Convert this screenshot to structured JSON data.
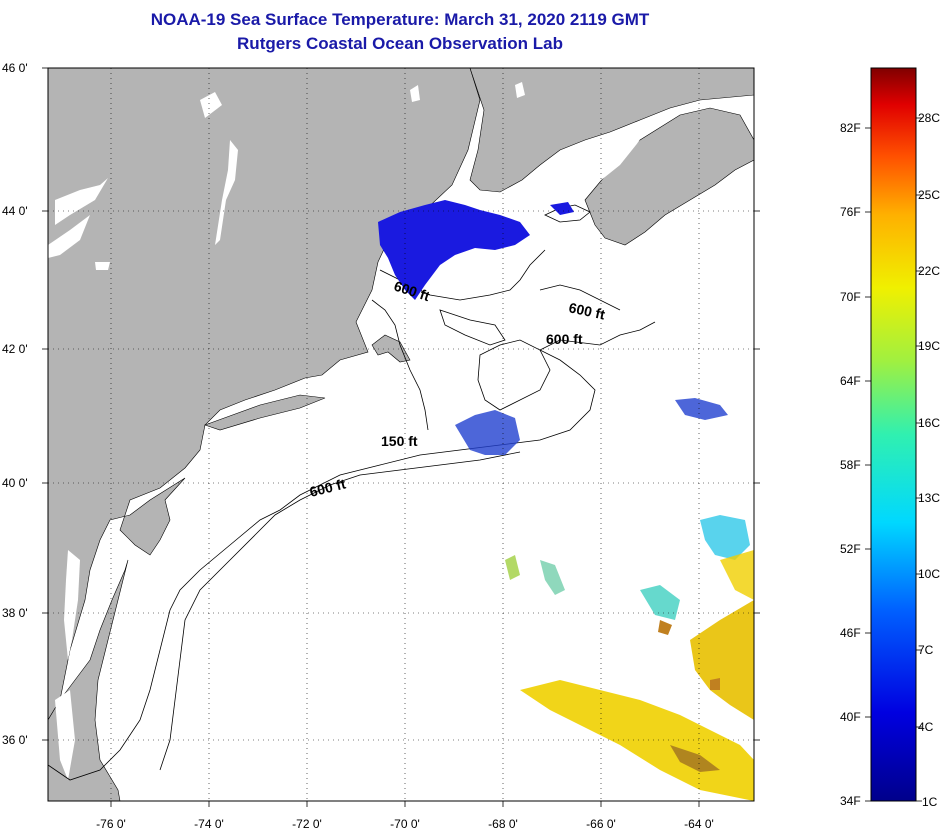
{
  "title": {
    "line1": "NOAA-19 Sea Surface Temperature:  March 31, 2020 2119 GMT",
    "line2": "Rutgers Coastal Ocean Observation Lab"
  },
  "map": {
    "lat_labels": [
      "46 0'",
      "44 0'",
      "42 0'",
      "40 0'",
      "38 0'",
      "36 0'"
    ],
    "lon_labels": [
      "-76 0'",
      "-74 0'",
      "-72 0'",
      "-70 0'",
      "-68 0'",
      "-66 0'",
      "-64 0'"
    ],
    "contour_labels": [
      "600 ft",
      "600 ft",
      "600 ft",
      "150 ft",
      "600 ft"
    ]
  },
  "colorbar": {
    "fahrenheit": [
      "82F",
      "76F",
      "70F",
      "64F",
      "58F",
      "52F",
      "46F",
      "40F",
      "34F"
    ],
    "celsius": [
      "28C",
      "25C",
      "22C",
      "19C",
      "16C",
      "13C",
      "10C",
      "7C",
      "4C",
      "1C"
    ]
  },
  "colors": {
    "land": "#b4b4b4",
    "water": "#ffffff",
    "title": "#1a1aa8",
    "cold": "#1a1ae0",
    "warm": "#f0d000"
  }
}
